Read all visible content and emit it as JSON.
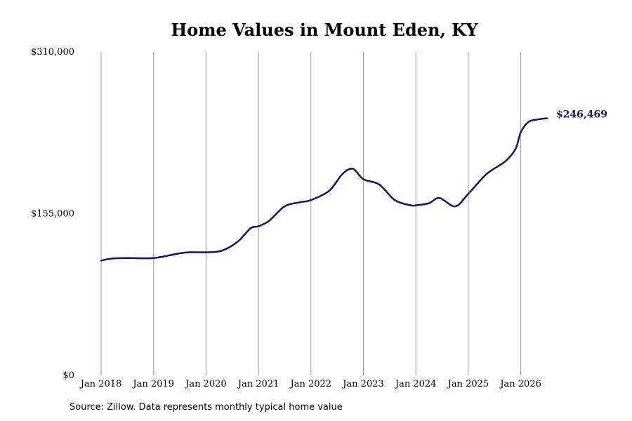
{
  "chart_data": {
    "type": "line",
    "title": "Home Values in Mount Eden, KY",
    "xlabel": "",
    "ylabel": "",
    "ylim": [
      0,
      310000
    ],
    "y_ticks": [
      {
        "value": 0,
        "label": "$0"
      },
      {
        "value": 155000,
        "label": "$155,000"
      },
      {
        "value": 310000,
        "label": "$310,000"
      }
    ],
    "x_ticks": [
      {
        "value": 2018,
        "label": "Jan 2018"
      },
      {
        "value": 2019,
        "label": "Jan 2019"
      },
      {
        "value": 2020,
        "label": "Jan 2020"
      },
      {
        "value": 2021,
        "label": "Jan 2021"
      },
      {
        "value": 2022,
        "label": "Jan 2022"
      },
      {
        "value": 2023,
        "label": "Jan 2023"
      },
      {
        "value": 2024,
        "label": "Jan 2024"
      },
      {
        "value": 2025,
        "label": "Jan 2025"
      },
      {
        "value": 2026,
        "label": "Jan 2026"
      }
    ],
    "grid": {
      "vertical": true,
      "horizontal": false
    },
    "line_color": "#14145e",
    "grid_color": "#999999",
    "end_label": "$246,469",
    "series": [
      {
        "x": [
          2018.0,
          2018.2,
          2018.5,
          2018.8,
          2019.0,
          2019.2,
          2019.5,
          2019.7,
          2020.0,
          2020.3,
          2020.6,
          2020.85,
          2021.0,
          2021.2,
          2021.5,
          2021.8,
          2022.0,
          2022.35,
          2022.6,
          2022.8,
          2023.0,
          2023.3,
          2023.6,
          2023.9,
          2024.0,
          2024.25,
          2024.45,
          2024.75,
          2025.0,
          2025.35,
          2025.7,
          2025.9,
          2026.0,
          2026.15,
          2026.35,
          2026.5
        ],
        "y": [
          110000,
          112000,
          112500,
          112200,
          112500,
          114000,
          117000,
          118000,
          118000,
          119500,
          128000,
          141000,
          143000,
          148000,
          162000,
          166000,
          168000,
          177000,
          193000,
          198000,
          188000,
          183000,
          168000,
          163000,
          163000,
          165000,
          170000,
          162000,
          174000,
          193000,
          205000,
          217000,
          233000,
          243000,
          245500,
          246469
        ]
      }
    ]
  },
  "source_note": "Source: Zillow. Data represents monthly typical home value"
}
